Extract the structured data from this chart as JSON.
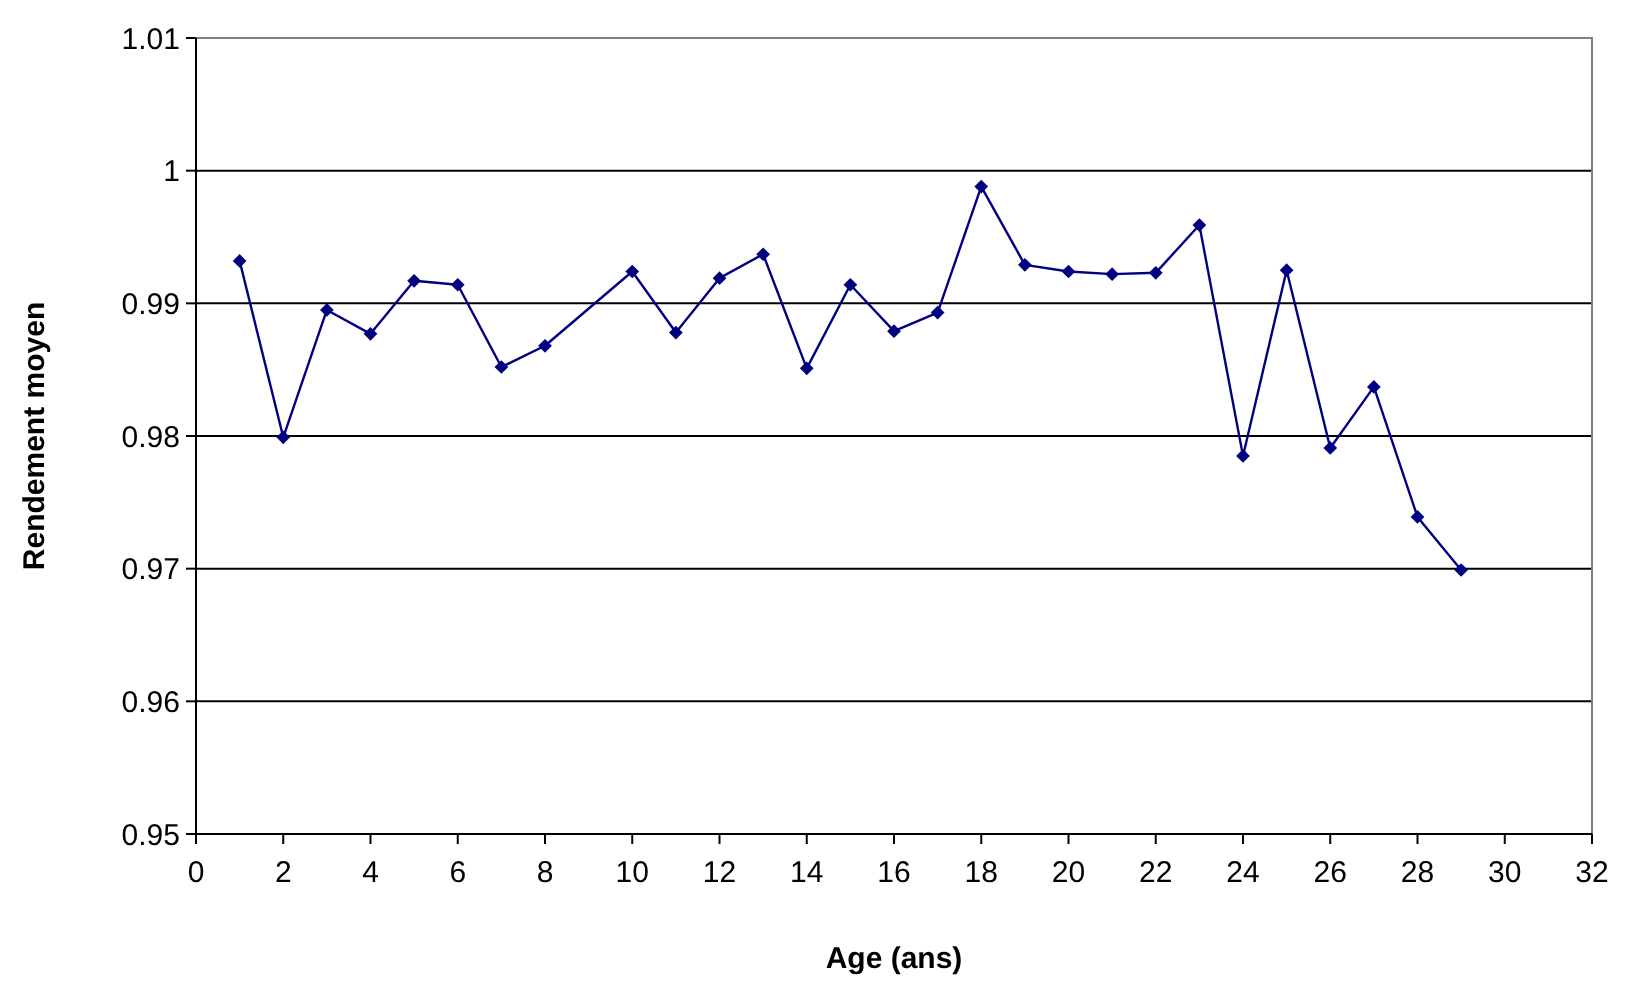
{
  "chart_data": {
    "type": "line",
    "xlabel": "Age (ans)",
    "ylabel": "Rendement moyen",
    "x": [
      1,
      2,
      3,
      4,
      5,
      6,
      7,
      8,
      10,
      11,
      12,
      13,
      14,
      15,
      16,
      17,
      18,
      19,
      20,
      21,
      22,
      23,
      24,
      25,
      26,
      27,
      28,
      29
    ],
    "series": [
      {
        "color": "#000080",
        "values": [
          0.9932,
          0.9799,
          0.9895,
          0.9877,
          0.9917,
          0.9914,
          0.9852,
          0.9868,
          0.9924,
          0.9878,
          0.9919,
          0.9937,
          0.9851,
          0.9914,
          0.9879,
          0.9893,
          0.9988,
          0.9929,
          0.9924,
          0.9922,
          0.9923,
          0.9959,
          0.9785,
          0.9925,
          0.9791,
          0.9837,
          0.9739,
          0.9699
        ]
      }
    ],
    "xlim": [
      0,
      32
    ],
    "xticks": [
      0,
      2,
      4,
      6,
      8,
      10,
      12,
      14,
      16,
      18,
      20,
      22,
      24,
      26,
      28,
      30,
      32
    ],
    "ylim": [
      0.95,
      1.01
    ],
    "yticks": [
      0.95,
      0.96,
      0.97,
      0.98,
      0.99,
      {
        "value": 1,
        "label": "1"
      },
      1.01
    ],
    "grid": "y",
    "marker": "diamond",
    "line_style": "solid"
  }
}
